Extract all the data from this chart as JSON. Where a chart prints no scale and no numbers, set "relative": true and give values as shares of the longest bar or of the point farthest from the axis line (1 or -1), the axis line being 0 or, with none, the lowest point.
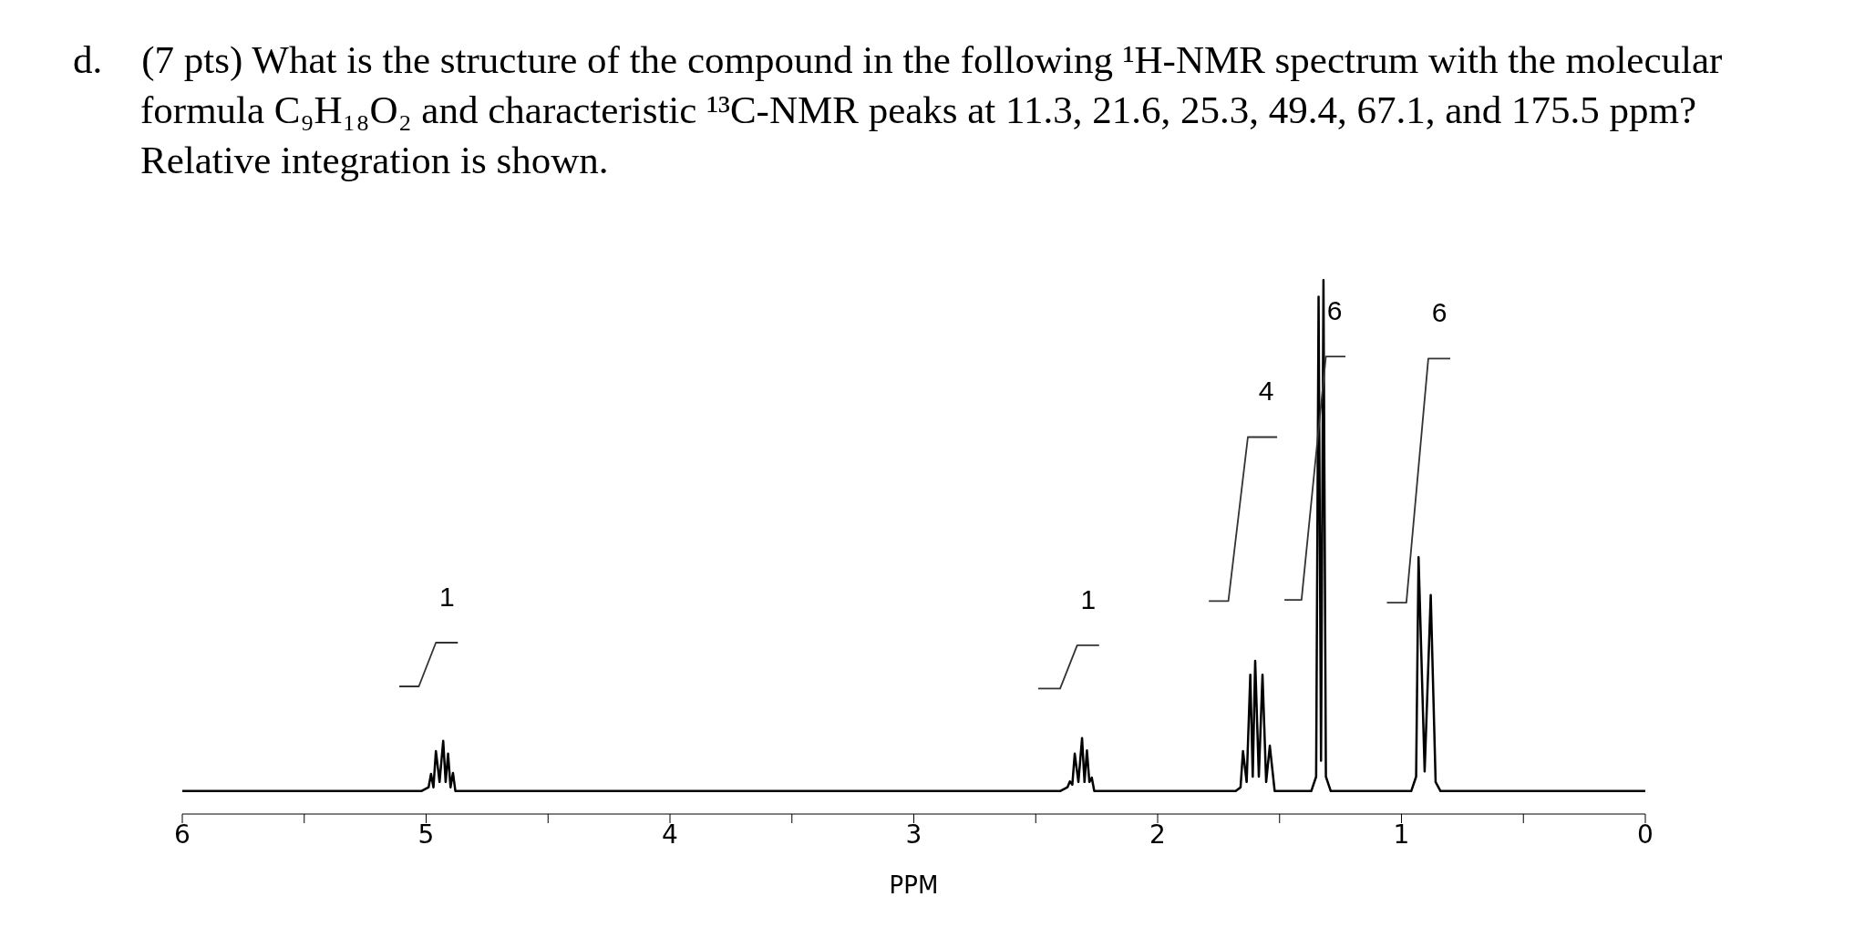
{
  "chart_data": {
    "type": "line",
    "title": "d. (7 pts) What is the structure of the compound in the following ¹H-NMR spectrum with the molecular formula C₉H₁₈O₂ and characteristic ¹³C-NMR peaks at 11.3, 21.6, 25.3, 49.4, 67.1, and 175.5 ppm? Relative integration is shown.",
    "xlabel": "PPM",
    "relative": true,
    "grid": false,
    "marker": "none",
    "line_style": "solid",
    "xlim": [
      6,
      0
    ],
    "xticks": [
      6,
      {
        "value": 5.5,
        "label": null
      },
      5,
      {
        "value": 4.5,
        "label": null
      },
      4,
      {
        "value": 3.5,
        "label": null
      },
      3,
      {
        "value": 2.5,
        "label": null
      },
      2,
      {
        "value": 1.5,
        "label": null
      },
      1,
      {
        "value": 0.5,
        "label": null
      },
      0
    ],
    "series": [
      {
        "color": "#000000",
        "x": [
          6,
          5.02,
          4.99,
          4.98,
          4.97,
          4.96,
          4.945,
          4.93,
          4.92,
          4.91,
          4.9,
          4.89,
          4.88,
          2.4,
          2.37,
          2.36,
          2.35,
          2.34,
          2.325,
          2.31,
          2.3,
          2.29,
          2.28,
          2.27,
          2.26,
          1.68,
          1.66,
          1.65,
          1.635,
          1.62,
          1.61,
          1.6,
          1.585,
          1.57,
          1.555,
          1.54,
          1.52,
          1.37,
          1.35,
          1.34,
          1.33,
          1.32,
          1.31,
          1.29,
          0.96,
          0.94,
          0.93,
          0.905,
          0.88,
          0.86,
          0.84,
          0
        ],
        "values": [
          0.043,
          0.043,
          0.05,
          0.075,
          0.05,
          0.118,
          0.06,
          0.137,
          0.06,
          0.113,
          0.05,
          0.077,
          0.043,
          0.043,
          0.05,
          0.061,
          0.055,
          0.113,
          0.06,
          0.142,
          0.06,
          0.119,
          0.06,
          0.068,
          0.043,
          0.043,
          0.05,
          0.118,
          0.06,
          0.261,
          0.07,
          0.287,
          0.07,
          0.261,
          0.06,
          0.128,
          0.043,
          0.043,
          0.07,
          0.969,
          0.1,
          1.0,
          0.07,
          0.043,
          0.043,
          0.07,
          0.481,
          0.08,
          0.41,
          0.06,
          0.043,
          0.043
        ]
      },
      {
        "color": "#333333",
        "x": [
          5.11,
          5.03,
          4.96,
          4.87
        ],
        "values": [
          0.239,
          0.239,
          0.321,
          0.321
        ]
      },
      {
        "color": "#333333",
        "x": [
          2.49,
          2.4,
          2.33,
          2.24
        ],
        "values": [
          0.235,
          0.235,
          0.316,
          0.316
        ]
      },
      {
        "color": "#333333",
        "x": [
          1.79,
          1.71,
          1.63,
          1.51
        ],
        "values": [
          0.399,
          0.399,
          0.706,
          0.706
        ]
      },
      {
        "color": "#333333",
        "x": [
          1.48,
          1.41,
          1.31,
          1.23
        ],
        "values": [
          0.401,
          0.401,
          0.857,
          0.857
        ]
      },
      {
        "color": "#333333",
        "x": [
          1.06,
          0.98,
          0.89,
          0.8
        ],
        "values": [
          0.396,
          0.396,
          0.853,
          0.853
        ]
      }
    ],
    "annotations": [
      "1",
      "1",
      "4",
      "6",
      "6"
    ]
  }
}
